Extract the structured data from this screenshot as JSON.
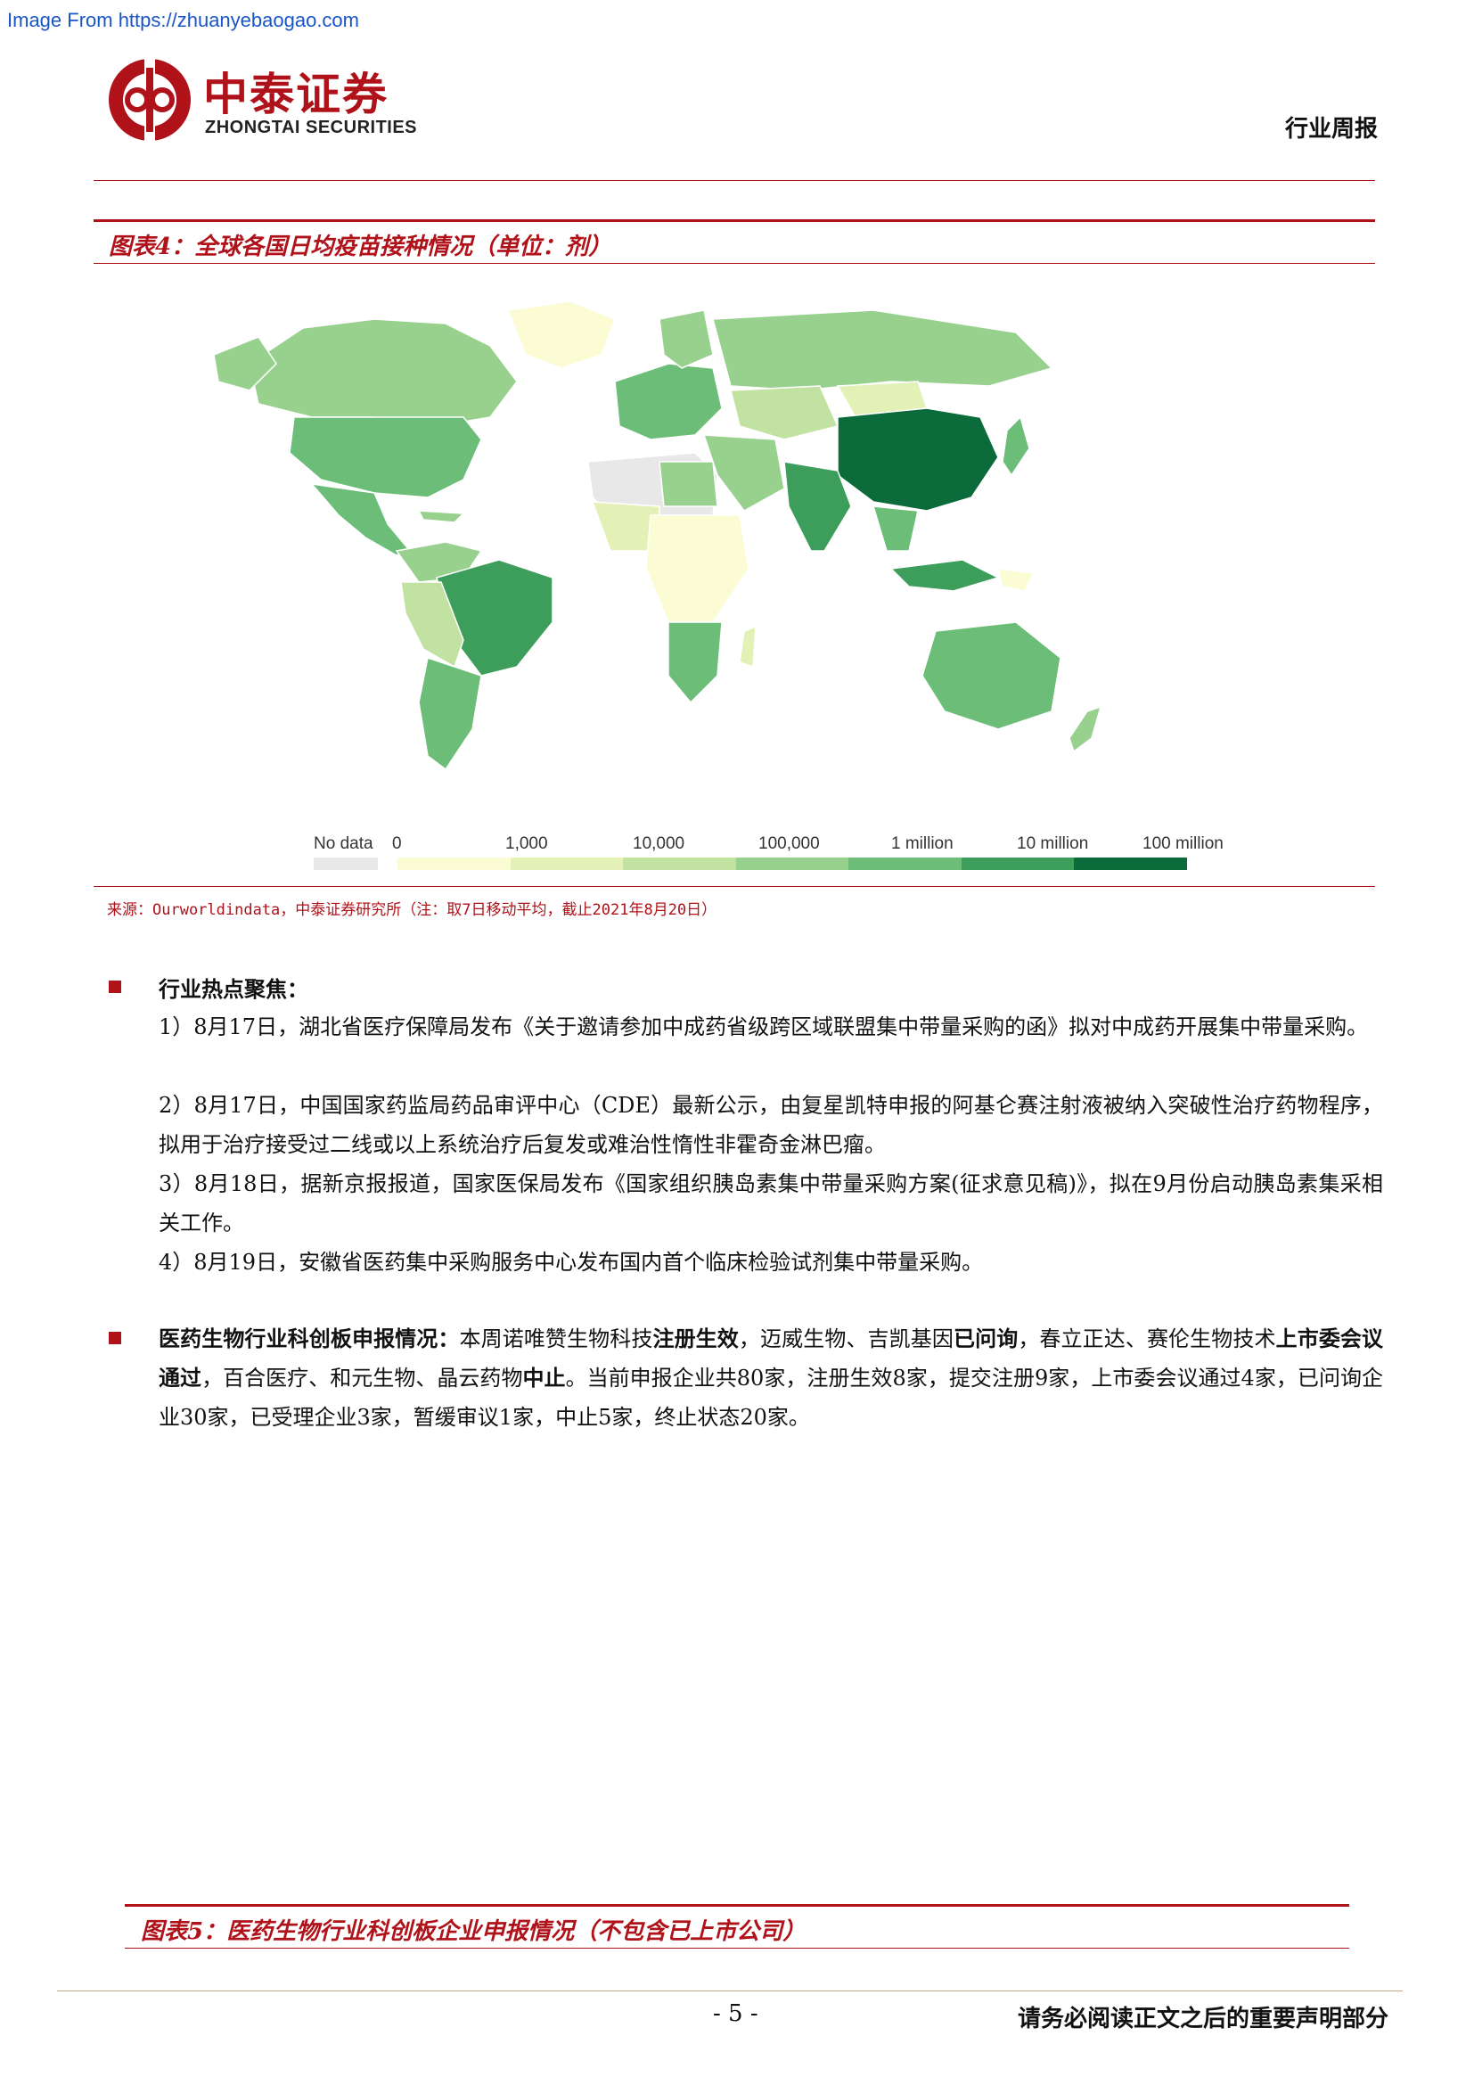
{
  "watermark": "Image From https://zhuanyebaogao.com",
  "header": {
    "logo_cn": "中泰证券",
    "logo_en": "ZHONGTAI SECURITIES",
    "report_type": "行业周报"
  },
  "figure4": {
    "title": "图表4：全球各国日均疫苗接种情况（单位：剂）",
    "legend": {
      "no_data": "No data",
      "ticks": [
        "0",
        "1,000",
        "10,000",
        "100,000",
        "1 million",
        "10 million",
        "100 million"
      ]
    },
    "colors": {
      "no_data": "#e8e8e8",
      "scale": [
        "#fbfbd4",
        "#e3f0b6",
        "#c2e2a1",
        "#98d08e",
        "#6bbd78",
        "#3d9e5b",
        "#0b6b3a"
      ]
    },
    "source": "来源：Ourworldindata，中泰证券研究所（注：取7日移动平均，截止2021年8月20日）"
  },
  "section1": {
    "heading": "行业热点聚焦：",
    "items": [
      "1）8月17日，湖北省医疗保障局发布《关于邀请参加中成药省级跨区域联盟集中带量采购的函》拟对中成药开展集中带量采购。",
      "2）8月17日，中国国家药监局药品审评中心（CDE）最新公示，由复星凯特申报的阿基仑赛注射液被纳入突破性治疗药物程序，拟用于治疗接受过二线或以上系统治疗后复发或难治性惰性非霍奇金淋巴瘤。",
      "3）8月18日，据新京报报道，国家医保局发布《国家组织胰岛素集中带量采购方案(征求意见稿)》，拟在9月份启动胰岛素集采相关工作。",
      "4）8月19日，安徽省医药集中采购服务中心发布国内首个临床检验试剂集中带量采购。"
    ]
  },
  "section2": {
    "heading": "医药生物行业科创板申报情况：",
    "p1": "本周诺唯赞生物科技",
    "b1": "注册生效",
    "p2": "，迈威生物、吉凯基因",
    "b2": "已问询",
    "p3": "，春立正达、赛伦生物技术",
    "b3": "上市委会议通过",
    "p4": "，百合医疗、和元生物、晶云药物",
    "b4": "中止",
    "p5": "。当前申报企业共80家，注册生效8家，提交注册9家，上市委会议通过4家，已问询企业30家，已受理企业3家，暂缓审议1家，中止5家，终止状态20家。"
  },
  "figure5": {
    "title": "图表5：医药生物行业科创板企业申报情况（不包含已上市公司）"
  },
  "footer": {
    "page": "- 5 -",
    "disclaimer": "请务必阅读正文之后的重要声明部分"
  }
}
